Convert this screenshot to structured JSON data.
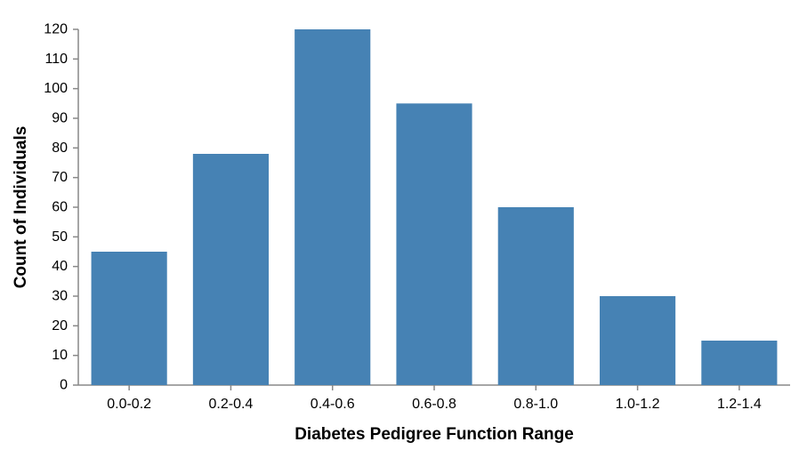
{
  "colors": {
    "bar": "#4682b4",
    "axis": "#888888",
    "text": "#000000",
    "background": "#ffffff"
  },
  "chart_data": {
    "type": "bar",
    "title": "",
    "xlabel": "Diabetes Pedigree Function Range",
    "ylabel": "Count of Individuals",
    "categories": [
      "0.0-0.2",
      "0.2-0.4",
      "0.4-0.6",
      "0.6-0.8",
      "0.8-1.0",
      "1.0-1.2",
      "1.2-1.4"
    ],
    "values": [
      45,
      78,
      120,
      95,
      60,
      30,
      15
    ],
    "ylim": [
      0,
      120
    ],
    "yticks": [
      0,
      10,
      20,
      30,
      40,
      50,
      60,
      70,
      80,
      90,
      100,
      110,
      120
    ],
    "grid": false,
    "legend": "none"
  }
}
